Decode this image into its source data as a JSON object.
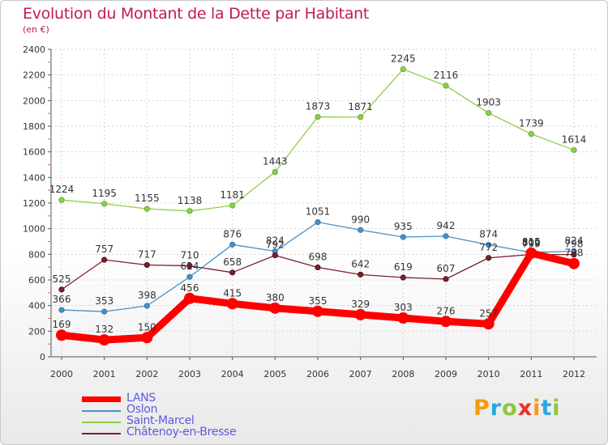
{
  "header": {
    "title": "Evolution du Montant de la Dette par Habitant",
    "subtitle": "(en €)"
  },
  "logo": {
    "text": "Proxiti",
    "colors": [
      "#f39c12",
      "#27a9e1",
      "#8cc63f",
      "#e6332a",
      "#f39c12",
      "#27a9e1",
      "#8cc63f"
    ]
  },
  "chart_data": {
    "type": "line",
    "title": "Evolution du Montant de la Dette par Habitant",
    "subtitle": "(en €)",
    "xlabel": "",
    "ylabel": "",
    "x": [
      "2000",
      "2001",
      "2002",
      "2003",
      "2004",
      "2005",
      "2006",
      "2007",
      "2008",
      "2009",
      "2010",
      "2011",
      "2012"
    ],
    "ylim": [
      0,
      2400
    ],
    "yticks": [
      0,
      200,
      400,
      600,
      800,
      1000,
      1200,
      1400,
      1600,
      1800,
      2000,
      2200,
      2400
    ],
    "grid": true,
    "legend_position": "bottom-left",
    "series": [
      {
        "name": "Saint-Marcel",
        "color": "#8cd04a",
        "values": [
          1224,
          1195,
          1155,
          1138,
          1181,
          1443,
          1873,
          1871,
          2245,
          2116,
          1903,
          1739,
          1614
        ]
      },
      {
        "name": "Oslon",
        "color": "#4a90c8",
        "values": [
          366,
          353,
          398,
          624,
          876,
          824,
          1051,
          990,
          935,
          942,
          874,
          815,
          824
        ]
      },
      {
        "name": "Châtenoy-en-Bresse",
        "color": "#7a1f2b",
        "values": [
          525,
          757,
          717,
          710,
          658,
          792,
          698,
          642,
          619,
          607,
          772,
          799,
          798
        ]
      },
      {
        "name": "LANS",
        "color": "#ff0000",
        "values": [
          169,
          132,
          150,
          456,
          415,
          380,
          355,
          329,
          303,
          276,
          257,
          809,
          728
        ]
      }
    ],
    "labels": {
      "Saint-Marcel": [
        "1224",
        "1195",
        "1155",
        "1138",
        "1181",
        "1443",
        "1873",
        "1871",
        "2245",
        "2116",
        "1903",
        "1739",
        "1614"
      ],
      "Oslon": [
        "366",
        "353",
        "398",
        "624",
        "876",
        "824",
        "1051",
        "990",
        "935",
        "942",
        "874",
        "815",
        "824"
      ],
      "Châtenoy-en-Bresse": [
        "525",
        "757",
        "717",
        "710",
        "658",
        "792",
        "698",
        "642",
        "619",
        "607",
        "772",
        "799",
        "798"
      ],
      "LANS": [
        "169",
        "132",
        "150",
        "456",
        "415",
        "380",
        "355",
        "329",
        "303",
        "276",
        "257",
        "809",
        "728"
      ]
    }
  },
  "legend": {
    "items": [
      {
        "name": "LANS",
        "color": "#ff0000"
      },
      {
        "name": "Oslon",
        "color": "#4a90c8"
      },
      {
        "name": "Saint-Marcel",
        "color": "#8cd04a"
      },
      {
        "name": "Châtenoy-en-Bresse",
        "color": "#7a1f2b"
      }
    ]
  }
}
